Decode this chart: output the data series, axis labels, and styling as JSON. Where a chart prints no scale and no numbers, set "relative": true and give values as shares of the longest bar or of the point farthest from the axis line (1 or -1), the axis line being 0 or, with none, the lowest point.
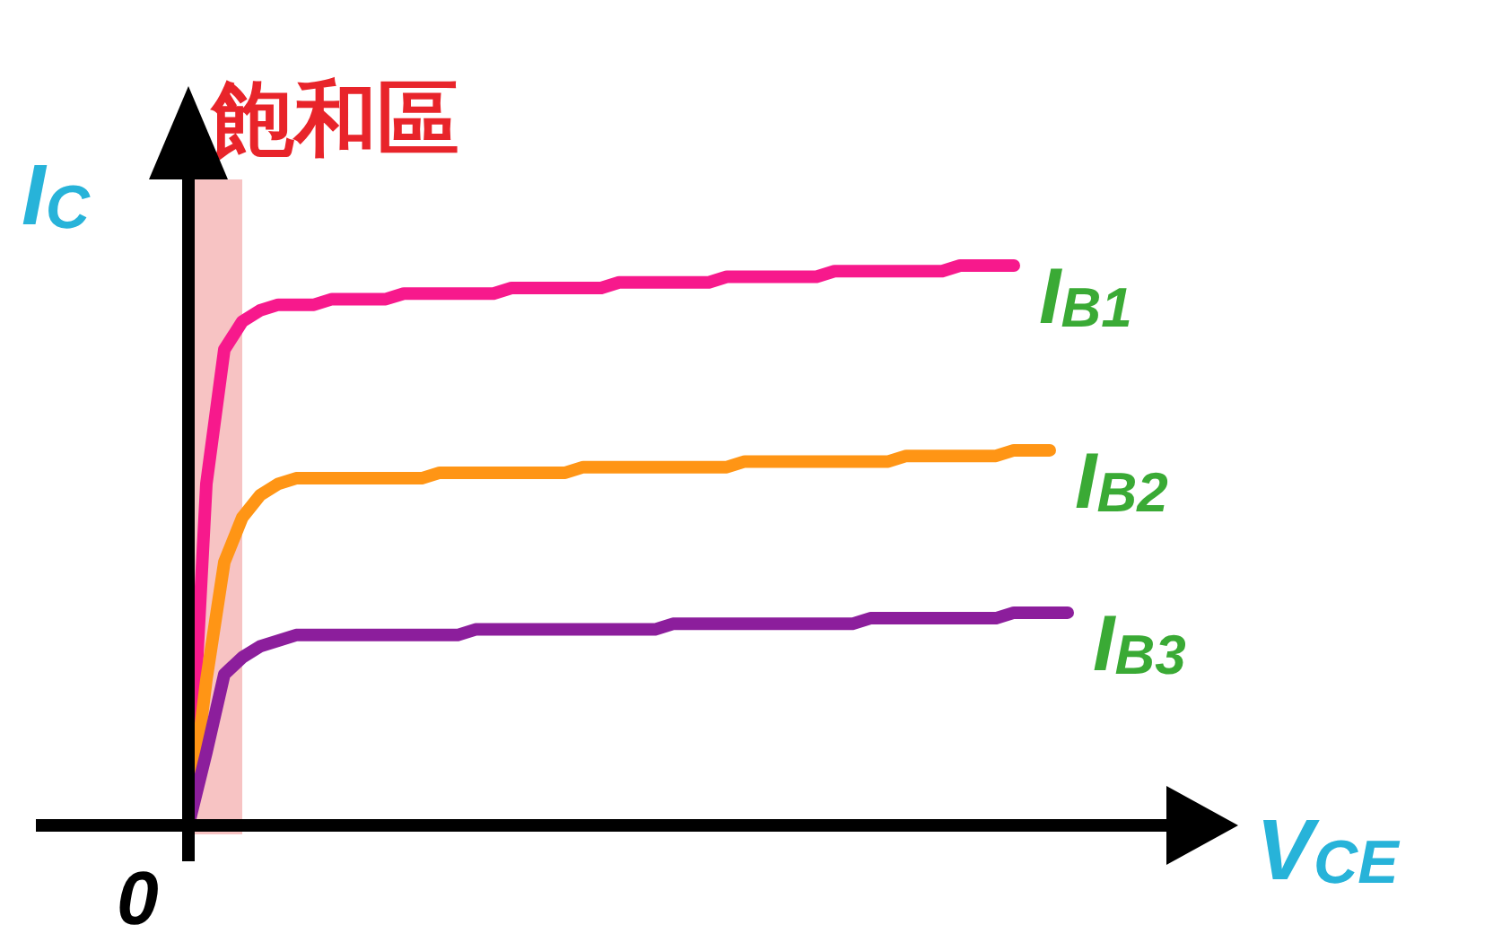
{
  "chart_data": {
    "type": "line",
    "relative": true,
    "xlabel": "V$_{CE}$",
    "ylabel": "I$_{C}$",
    "annotations": [
      "0"
    ],
    "categories": [
      null,
      null,
      null,
      null,
      null,
      null,
      null,
      null,
      null,
      null,
      null,
      null,
      null,
      null,
      null,
      null,
      null,
      null,
      null,
      null,
      null,
      null,
      null,
      null,
      null,
      null,
      null,
      null,
      null,
      null,
      null,
      null,
      null,
      null,
      null,
      null,
      null,
      null,
      null,
      null,
      null,
      null,
      null,
      null,
      null,
      null,
      null,
      null,
      null,
      null
    ],
    "title": "飽和區",
    "series": [
      {
        "name": "I$_{B1}$",
        "color": "#f7198c",
        "values": [
          0,
          0.61,
          0.85,
          0.9,
          0.92,
          0.93,
          0.93,
          0.93,
          0.94,
          0.94,
          0.94,
          0.94,
          0.95,
          0.95,
          0.95,
          0.95,
          0.95,
          0.95,
          0.96,
          0.96,
          0.96,
          0.96,
          0.96,
          0.96,
          0.97,
          0.97,
          0.97,
          0.97,
          0.97,
          0.97,
          0.98,
          0.98,
          0.98,
          0.98,
          0.98,
          0.98,
          0.99,
          0.99,
          0.99,
          0.99,
          0.99,
          0.99,
          0.99,
          1,
          1,
          1,
          1,
          null,
          null,
          null
        ]
      },
      {
        "name": "I$_{B2}$",
        "color": "#ff9515",
        "values": [
          0,
          0.26,
          0.47,
          0.55,
          0.59,
          0.61,
          0.62,
          0.62,
          0.62,
          0.62,
          0.62,
          0.62,
          0.62,
          0.62,
          0.63,
          0.63,
          0.63,
          0.63,
          0.63,
          0.63,
          0.63,
          0.63,
          0.64,
          0.64,
          0.64,
          0.64,
          0.64,
          0.64,
          0.64,
          0.64,
          0.64,
          0.65,
          0.65,
          0.65,
          0.65,
          0.65,
          0.65,
          0.65,
          0.65,
          0.65,
          0.66,
          0.66,
          0.66,
          0.66,
          0.66,
          0.66,
          0.67,
          0.67,
          0.67,
          null
        ]
      },
      {
        "name": "I$_{B3}$",
        "color": "#8c1e9c",
        "values": [
          0,
          0.13,
          0.27,
          0.3,
          0.32,
          0.33,
          0.34,
          0.34,
          0.34,
          0.34,
          0.34,
          0.34,
          0.34,
          0.34,
          0.34,
          0.34,
          0.35,
          0.35,
          0.35,
          0.35,
          0.35,
          0.35,
          0.35,
          0.35,
          0.35,
          0.35,
          0.35,
          0.36,
          0.36,
          0.36,
          0.36,
          0.36,
          0.36,
          0.36,
          0.36,
          0.36,
          0.36,
          0.36,
          0.37,
          0.37,
          0.37,
          0.37,
          0.37,
          0.37,
          0.37,
          0.37,
          0.38,
          0.38,
          0.38,
          0.38
        ]
      }
    ]
  }
}
